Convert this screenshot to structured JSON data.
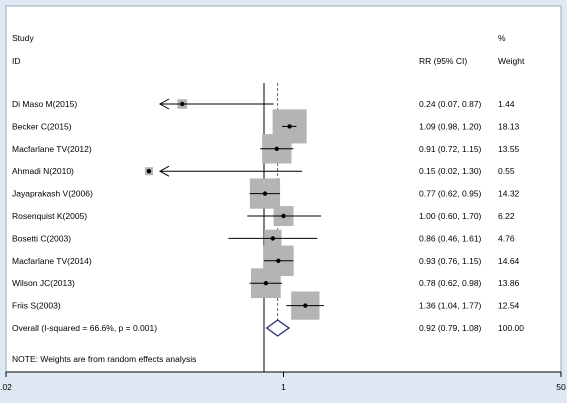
{
  "chart_data": {
    "type": "forest",
    "headers": {
      "study_line1": "Study",
      "study_line2": "ID",
      "effect": "RR (95% CI)",
      "weight_line1": "%",
      "weight_line2": "Weight"
    },
    "xscale": "log",
    "xlim": [
      0.02,
      50
    ],
    "null_line": 1,
    "x_ticks": [
      {
        "value": 0.02,
        "label": ".02"
      },
      {
        "value": 1,
        "label": "1"
      },
      {
        "value": 50,
        "label": "50"
      }
    ],
    "studies": [
      {
        "label": "Di Maso M(2015)",
        "rr": 0.24,
        "lo": 0.07,
        "hi": 0.87,
        "ci_text": "0.24 (0.07, 0.87)",
        "weight": 1.44,
        "weight_text": "1.44"
      },
      {
        "label": "Becker C(2015)",
        "rr": 1.09,
        "lo": 0.98,
        "hi": 1.2,
        "ci_text": "1.09 (0.98, 1.20)",
        "weight": 18.13,
        "weight_text": "18.13"
      },
      {
        "label": "Macfarlane TV(2012)",
        "rr": 0.91,
        "lo": 0.72,
        "hi": 1.15,
        "ci_text": "0.91 (0.72, 1.15)",
        "weight": 13.55,
        "weight_text": "13.55"
      },
      {
        "label": "Ahmadi N(2010)",
        "rr": 0.15,
        "lo": 0.02,
        "hi": 1.3,
        "ci_text": "0.15 (0.02, 1.30)",
        "weight": 0.55,
        "weight_text": "0.55"
      },
      {
        "label": "Jayaprakash V(2006)",
        "rr": 0.77,
        "lo": 0.62,
        "hi": 0.95,
        "ci_text": "0.77 (0.62, 0.95)",
        "weight": 14.32,
        "weight_text": "14.32"
      },
      {
        "label": "Rosenquist K(2005)",
        "rr": 1.0,
        "lo": 0.6,
        "hi": 1.7,
        "ci_text": "1.00 (0.60, 1.70)",
        "weight": 6.22,
        "weight_text": "6.22"
      },
      {
        "label": "Bosetti C(2003)",
        "rr": 0.86,
        "lo": 0.46,
        "hi": 1.61,
        "ci_text": "0.86 (0.46, 1.61)",
        "weight": 4.76,
        "weight_text": "4.76"
      },
      {
        "label": "Macfarlane TV(2014)",
        "rr": 0.93,
        "lo": 0.76,
        "hi": 1.15,
        "ci_text": "0.93 (0.76, 1.15)",
        "weight": 14.64,
        "weight_text": "14.64"
      },
      {
        "label": "Wilson JC(2013)",
        "rr": 0.78,
        "lo": 0.62,
        "hi": 0.98,
        "ci_text": "0.78 (0.62, 0.98)",
        "weight": 13.86,
        "weight_text": "13.86"
      },
      {
        "label": "Friis S(2003)",
        "rr": 1.36,
        "lo": 1.04,
        "hi": 1.77,
        "ci_text": "1.36 (1.04, 1.77)",
        "weight": 12.54,
        "weight_text": "12.54"
      }
    ],
    "overall": {
      "label": "Overall  (I-squared = 66.6%, p = 0.001)",
      "rr": 0.92,
      "lo": 0.79,
      "hi": 1.08,
      "ci_text": "0.92 (0.79, 1.08)",
      "weight_text": "100.00"
    },
    "note": "NOTE: Weights are from random effects analysis",
    "colors": {
      "box": "#b4b4b4",
      "diamond": "#1e2a78",
      "overall_line": "#c0404a",
      "frame_bg": "#dfe9f3"
    }
  }
}
